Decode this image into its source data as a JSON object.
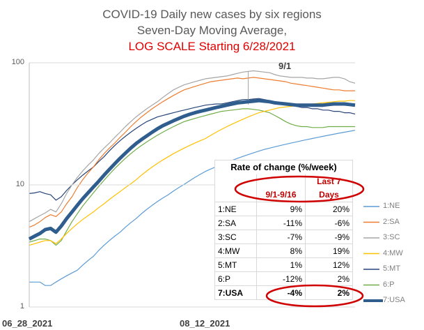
{
  "title": {
    "line1": "COVID-19 Daily new cases by six regions",
    "line2": "Seven-Day Moving Average,",
    "line3": "LOG SCALE Starting 6/28/2021"
  },
  "chart_data": {
    "type": "line",
    "yscale": "log",
    "ylim": [
      1,
      100
    ],
    "y_ticks": [
      "100",
      "10",
      "1"
    ],
    "x_ticks": [
      "06_28_2021",
      "08_12_2021"
    ],
    "x_start": "06_28_2021",
    "annotation": "9/1",
    "grid": "horizontal",
    "legend_position": "right",
    "series": [
      {
        "name": "1:NE",
        "color": "#5b9bd5",
        "values": [
          1.6,
          1.6,
          1.6,
          1.5,
          1.5,
          1.6,
          1.7,
          1.8,
          1.9,
          2.0,
          2.2,
          2.4,
          2.6,
          2.9,
          3.2,
          3.5,
          3.8,
          4.1,
          4.5,
          4.9,
          5.3,
          5.8,
          6.3,
          6.8,
          7.3,
          7.8,
          8.3,
          8.9,
          9.5,
          10.1,
          10.8,
          11.5,
          12.2,
          12.9,
          13.5,
          14.1,
          14.7,
          15.3,
          15.9,
          16.5,
          17.1,
          17.7,
          18.3,
          18.9,
          19.5,
          20.0,
          20.5,
          21.0,
          21.5,
          22.0,
          22.5,
          23.0,
          23.5,
          24.0,
          24.5,
          25.0,
          25.5,
          26.0,
          26.5,
          27.0,
          27.5,
          28.0
        ]
      },
      {
        "name": "2:SA",
        "color": "#ed7d31",
        "values": [
          4.5,
          4.7,
          5.0,
          5.4,
          5.7,
          5.5,
          6.0,
          7.0,
          8.0,
          9.5,
          11.0,
          12.5,
          14.0,
          16.0,
          18.0,
          20.0,
          22.0,
          24.5,
          27.0,
          30.0,
          33.0,
          36.0,
          39.0,
          42.0,
          45.0,
          48.0,
          51.0,
          54.0,
          57.0,
          60.0,
          62.0,
          64.0,
          66.0,
          68.0,
          70.0,
          71.0,
          72.0,
          73.0,
          74.0,
          75.0,
          74.0,
          75.0,
          76.0,
          75.0,
          74.0,
          73.0,
          72.0,
          71.0,
          70.0,
          68.0,
          67.0,
          66.0,
          65.0,
          64.0,
          63.0,
          62.0,
          61.0,
          60.0,
          60.0,
          59.0,
          59.0,
          59.0
        ]
      },
      {
        "name": "3:SC",
        "color": "#a5a5a5",
        "values": [
          5.0,
          5.3,
          5.6,
          5.9,
          6.3,
          6.0,
          7.0,
          8.5,
          10.0,
          11.5,
          13.0,
          14.5,
          16.0,
          18.0,
          20.0,
          22.0,
          24.5,
          27.0,
          30.0,
          33.0,
          36.0,
          39.0,
          42.0,
          45.0,
          48.0,
          52.0,
          56.0,
          60.0,
          63.0,
          66.0,
          68.0,
          70.0,
          72.0,
          74.0,
          75.0,
          76.0,
          77.0,
          78.0,
          80.0,
          82.0,
          84.0,
          85.0,
          86.0,
          85.0,
          84.0,
          83.0,
          80.0,
          78.0,
          77.0,
          76.0,
          76.0,
          76.0,
          75.0,
          75.0,
          74.0,
          74.0,
          75.0,
          76.0,
          76.0,
          74.0,
          70.0,
          68.0
        ]
      },
      {
        "name": "4:MW",
        "color": "#ffc000",
        "values": [
          3.2,
          3.3,
          3.4,
          3.5,
          3.5,
          3.3,
          3.6,
          4.0,
          4.4,
          4.8,
          5.2,
          5.6,
          6.0,
          6.5,
          7.0,
          7.6,
          8.2,
          8.8,
          9.5,
          10.2,
          11.0,
          12.0,
          13.0,
          14.0,
          15.0,
          16.0,
          17.0,
          18.0,
          19.0,
          20.0,
          21.0,
          22.0,
          23.0,
          24.0,
          25.5,
          27.0,
          28.5,
          30.0,
          31.5,
          33.0,
          34.5,
          36.0,
          37.5,
          39.0,
          40.0,
          41.0,
          42.0,
          43.0,
          43.5,
          44.0,
          44.5,
          45.0,
          45.5,
          46.0,
          46.5,
          47.0,
          47.5,
          48.0,
          48.5,
          48.5,
          49.0,
          49.0
        ]
      },
      {
        "name": "5:MT",
        "color": "#264478",
        "values": [
          8.5,
          8.6,
          8.8,
          8.5,
          8.3,
          7.5,
          8.0,
          9.0,
          10.0,
          11.0,
          12.0,
          13.0,
          14.0,
          15.5,
          17.0,
          19.0,
          21.0,
          23.0,
          25.0,
          27.0,
          29.0,
          31.0,
          33.0,
          34.5,
          36.0,
          37.0,
          38.0,
          39.0,
          40.0,
          41.0,
          42.0,
          43.0,
          44.0,
          45.0,
          45.5,
          46.0,
          46.0,
          47.0,
          48.0,
          49.0,
          50.0,
          50.0,
          50.5,
          51.0,
          50.0,
          49.0,
          48.0,
          47.0,
          46.0,
          45.0,
          44.0,
          43.0,
          43.0,
          42.0,
          42.0,
          41.0,
          41.0,
          40.0,
          40.0,
          39.0,
          39.0,
          38.0
        ]
      },
      {
        "name": "6:P",
        "color": "#70ad47",
        "values": [
          3.4,
          3.5,
          3.6,
          3.6,
          3.5,
          3.2,
          3.5,
          4.2,
          5.0,
          5.8,
          6.7,
          7.6,
          8.6,
          9.7,
          10.9,
          12.2,
          13.6,
          15.0,
          16.5,
          18.0,
          19.5,
          21.0,
          22.5,
          24.0,
          25.5,
          27.0,
          28.5,
          30.0,
          31.5,
          33.0,
          34.0,
          35.0,
          36.0,
          37.0,
          38.0,
          39.0,
          40.0,
          40.5,
          41.0,
          41.5,
          42.0,
          42.0,
          41.5,
          41.0,
          40.0,
          39.0,
          37.0,
          35.0,
          33.0,
          31.5,
          30.5,
          30.0,
          30.0,
          29.5,
          29.5,
          29.5,
          30.0,
          30.0,
          30.0,
          30.0,
          30.0,
          30.0
        ]
      },
      {
        "name": "7:USA",
        "color": "#2e5d8e",
        "bold": true,
        "values": [
          3.6,
          3.8,
          4.0,
          4.3,
          4.4,
          4.1,
          4.6,
          5.3,
          6.0,
          6.8,
          7.7,
          8.6,
          9.6,
          10.7,
          12.0,
          13.4,
          14.9,
          16.5,
          18.2,
          20.0,
          21.8,
          23.5,
          25.2,
          27.0,
          28.8,
          30.5,
          32.0,
          33.5,
          35.0,
          36.5,
          37.8,
          39.0,
          40.0,
          41.0,
          42.0,
          43.0,
          44.0,
          45.0,
          46.0,
          47.0,
          47.5,
          48.0,
          48.5,
          49.0,
          48.5,
          48.0,
          47.0,
          46.5,
          46.0,
          45.5,
          45.0,
          45.0,
          45.0,
          45.0,
          45.0,
          45.0,
          45.5,
          46.0,
          46.0,
          46.0,
          45.5,
          45.0
        ]
      }
    ],
    "rate_table": {
      "title": "Rate of change (%/week)",
      "col1_header": "9/1-9/16",
      "col2_header_line1": "Last 7",
      "col2_header_line2": "Days",
      "rows": [
        {
          "label": "1:NE",
          "c1": "9%",
          "c2": "20%"
        },
        {
          "label": "2:SA",
          "c1": "-11%",
          "c2": "-6%"
        },
        {
          "label": "3:SC",
          "c1": "-7%",
          "c2": "-9%"
        },
        {
          "label": "4:MW",
          "c1": "8%",
          "c2": "19%"
        },
        {
          "label": "5:MT",
          "c1": "1%",
          "c2": "12%"
        },
        {
          "label": "6:P",
          "c1": "-12%",
          "c2": "2%"
        },
        {
          "label": "7:USA",
          "c1": "-4%",
          "c2": "2%"
        }
      ]
    }
  }
}
